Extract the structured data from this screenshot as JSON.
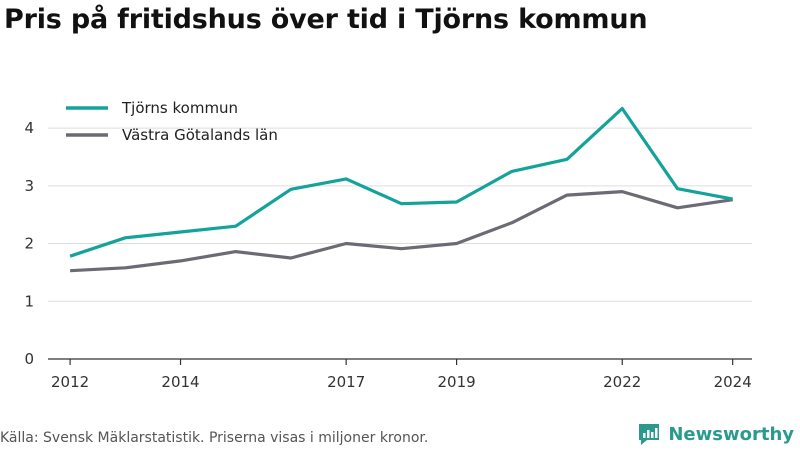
{
  "title": "Pris på fritidshus över tid i Tjörns kommun",
  "source": "Källa: Svensk Mäklarstatistik. Priserna visas i miljoner kronor.",
  "brand": "Newsworthy",
  "colors": {
    "teal": "#14a39a",
    "gray": "#6e6a75",
    "grid": "#dddddd",
    "axis": "#333333",
    "brand": "#2a9a8f"
  },
  "chart_data": {
    "type": "line",
    "title": "Pris på fritidshus över tid i Tjörns kommun",
    "xlabel": "",
    "ylabel": "",
    "x": [
      2012,
      2013,
      2014,
      2015,
      2016,
      2017,
      2018,
      2019,
      2020,
      2021,
      2022,
      2023,
      2024
    ],
    "xticks": [
      2012,
      2014,
      2017,
      2019,
      2022,
      2024
    ],
    "ylim": [
      0,
      4.4
    ],
    "yticks": [
      0,
      1,
      2,
      3,
      4
    ],
    "grid": true,
    "legend_position": "top-left",
    "series": [
      {
        "name": "Tjörns kommun",
        "color": "#14a39a",
        "values": [
          1.78,
          2.1,
          2.2,
          2.3,
          2.94,
          3.12,
          2.69,
          2.72,
          3.25,
          3.46,
          4.34,
          2.95,
          2.77
        ]
      },
      {
        "name": "Västra Götalands län",
        "color": "#6e6a75",
        "values": [
          1.53,
          1.58,
          1.7,
          1.86,
          1.75,
          2.0,
          1.91,
          2.0,
          2.36,
          2.84,
          2.9,
          2.62,
          2.76
        ]
      }
    ]
  }
}
